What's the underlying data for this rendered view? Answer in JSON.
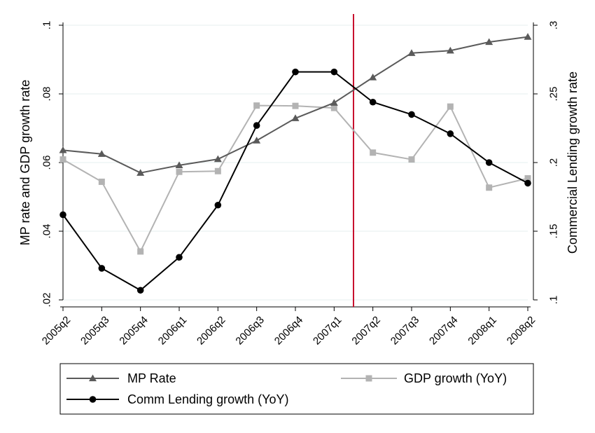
{
  "chart_data": {
    "type": "line",
    "categories": [
      "2005q2",
      "2005q3",
      "2005q4",
      "2006q1",
      "2006q2",
      "2006q3",
      "2006q4",
      "2007q1",
      "2007q2",
      "2007q3",
      "2007q4",
      "2008q1",
      "2008q2"
    ],
    "y_left": {
      "label": "MP rate and GDP growth rate",
      "ylim": [
        0.02,
        0.1
      ],
      "ticks": [
        0.02,
        0.04,
        0.06,
        0.08,
        0.1
      ],
      "tick_labels": [
        ".02",
        ".04",
        ".06",
        ".08",
        ".1"
      ]
    },
    "y_right": {
      "label": "Commercial Lending growth rate",
      "ylim": [
        0.1,
        0.3
      ],
      "ticks": [
        0.1,
        0.15,
        0.2,
        0.25,
        0.3
      ],
      "tick_labels": [
        ".1",
        ".15",
        ".2",
        ".25",
        ".3"
      ]
    },
    "grid": true,
    "reference_line": {
      "x": "between 2007q1 and 2007q2",
      "position_index": 7.5,
      "color": "#c8102e"
    },
    "series": [
      {
        "name": "MP Rate",
        "axis": "left",
        "color": "#5a5a5a",
        "marker": "triangle",
        "values": [
          0.0636,
          0.0625,
          0.057,
          0.0592,
          0.061,
          0.0664,
          0.0729,
          0.0774,
          0.0848,
          0.0919,
          0.0926,
          0.0951,
          0.0966
        ]
      },
      {
        "name": "GDP growth (YoY)",
        "axis": "left",
        "color": "#b3b3b3",
        "marker": "square",
        "values": [
          0.0609,
          0.0544,
          0.0341,
          0.0573,
          0.0575,
          0.0766,
          0.0765,
          0.0759,
          0.0629,
          0.0609,
          0.0763,
          0.0527,
          0.0554
        ]
      },
      {
        "name": "Comm Lending growth (YoY)",
        "axis": "right",
        "color": "#000000",
        "marker": "circle",
        "values": [
          0.162,
          0.123,
          0.107,
          0.131,
          0.169,
          0.227,
          0.266,
          0.266,
          0.244,
          0.235,
          0.221,
          0.2,
          0.185
        ]
      }
    ],
    "legend": {
      "placement": "bottom",
      "items": [
        "MP Rate",
        "GDP growth (YoY)",
        "Comm Lending growth (YoY)"
      ]
    }
  }
}
